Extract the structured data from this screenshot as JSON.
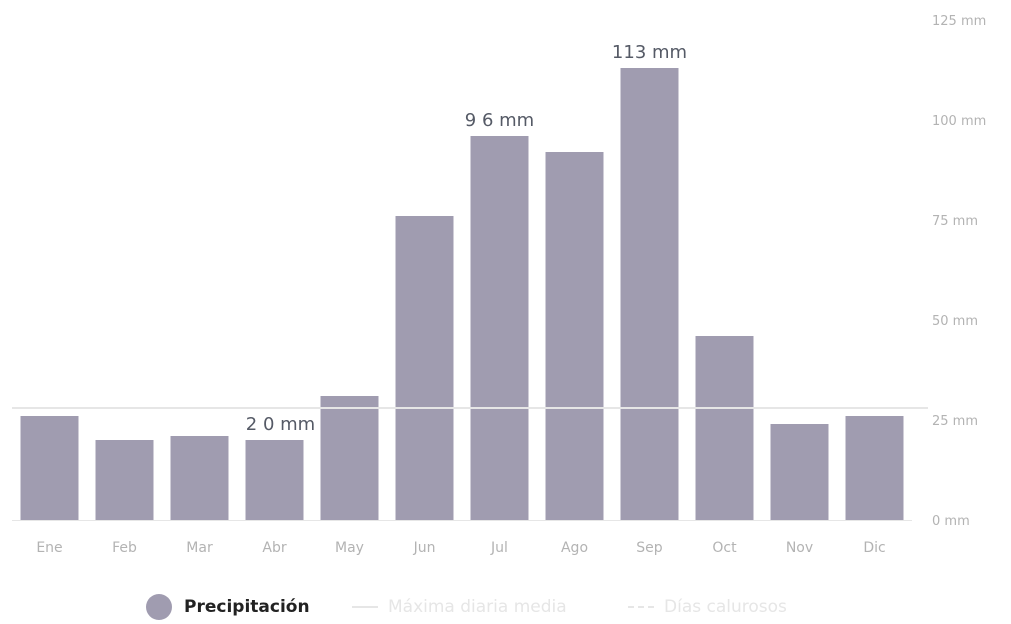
{
  "chart_data": {
    "type": "bar",
    "categories": [
      "Ene",
      "Feb",
      "Mar",
      "Abr",
      "May",
      "Jun",
      "Jul",
      "Ago",
      "Sep",
      "Oct",
      "Nov",
      "Dic"
    ],
    "series": [
      {
        "name": "Precipitación",
        "values": [
          26,
          20,
          21,
          20,
          31,
          76,
          96,
          92,
          113,
          46,
          24,
          26
        ],
        "color": "#a09cb0"
      }
    ],
    "reference_line": {
      "name": "Máxima diaria media",
      "value": 28,
      "color": "#e6e6e6"
    },
    "data_labels": [
      {
        "category": "Abr",
        "text": "2 0 mm"
      },
      {
        "category": "Jul",
        "text": "9 6 mm"
      },
      {
        "category": "Sep",
        "text": "113 mm"
      }
    ],
    "yticks": [
      {
        "value": 0,
        "label": "0 mm"
      },
      {
        "value": 25,
        "label": "25 mm"
      },
      {
        "value": 50,
        "label": "50 mm"
      },
      {
        "value": 75,
        "label": "75 mm"
      },
      {
        "value": 100,
        "label": "100 mm"
      },
      {
        "value": 125,
        "label": "125 mm"
      }
    ],
    "ylim": [
      0,
      125
    ],
    "title": "",
    "xlabel": "",
    "ylabel": "",
    "grid": false,
    "legend_position": "bottom-center"
  },
  "legend": {
    "items": [
      {
        "label": "Precipitación",
        "style": "circle",
        "color": "#a09cb0",
        "text_color": "#222222",
        "active": true
      },
      {
        "label": "Máxima diaria media",
        "style": "line",
        "color": "#e6e6e6",
        "text_color": "#e6e6e6",
        "active": false
      },
      {
        "label": "Días calurosos",
        "style": "dash",
        "color": "#e6e6e6",
        "text_color": "#e6e6e6",
        "active": false
      }
    ]
  }
}
